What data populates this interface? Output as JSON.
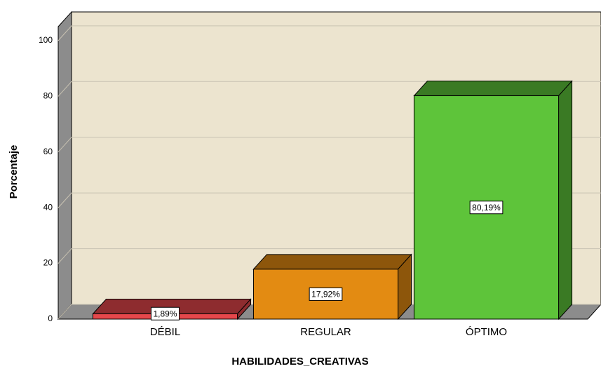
{
  "chart_data": {
    "type": "bar3d",
    "x_label": "HABILIDADES_CREATIVAS",
    "y_label": "Porcentaje",
    "categories": [
      "DÉBIL",
      "REGULAR",
      "ÓPTIMO"
    ],
    "values": [
      1.89,
      17.92,
      80.19
    ],
    "value_labels": [
      "1,89%",
      "17,92%",
      "80,19%"
    ],
    "colors": [
      "#e5474b",
      "#e38b12",
      "#5ec43a"
    ],
    "ylim": [
      0,
      105
    ],
    "yticks": [
      0,
      20,
      40,
      60,
      80,
      100
    ],
    "grid": true
  }
}
